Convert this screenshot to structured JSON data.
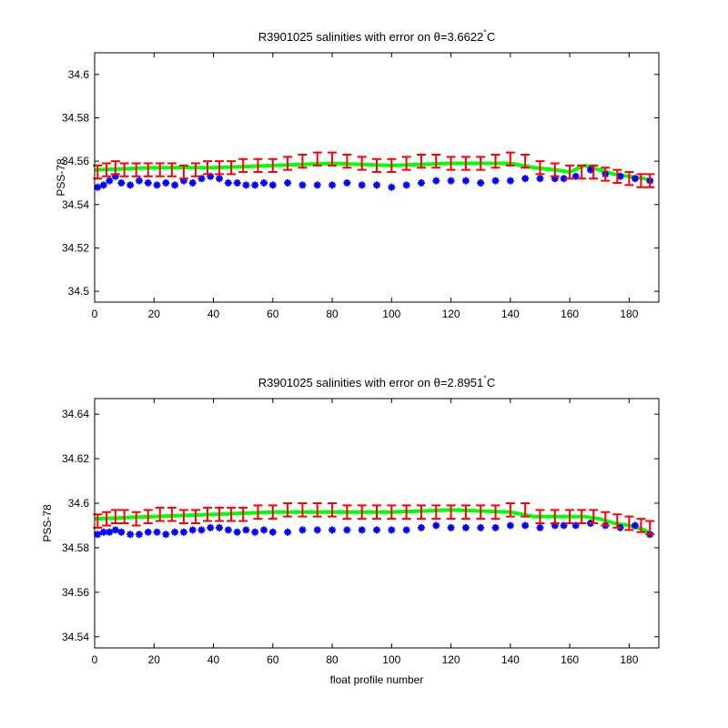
{
  "colors": {
    "raw": "#0000ff",
    "calibrated": "#ff0000",
    "mapped": "#00ff00",
    "axes": "#000000"
  },
  "chart_data": [
    {
      "type": "scatter",
      "title": "R3901025 salinities with error on θ=3.6622",
      "title_sup": "°",
      "title_unit": "C",
      "xlabel": "",
      "ylabel": "PSS-78",
      "xlim": [
        0,
        190
      ],
      "ylim": [
        34.495,
        34.61
      ],
      "xticks": [
        0,
        20,
        40,
        60,
        80,
        100,
        120,
        140,
        160,
        180
      ],
      "yticks": [
        34.5,
        34.52,
        34.54,
        34.56,
        34.58,
        34.6
      ],
      "ytick_labels": [
        "34.5",
        "34.52",
        "34.54",
        "34.56",
        "34.58",
        "34.6"
      ],
      "series": [
        {
          "role": "raw",
          "style": "blue-star",
          "x": [
            1,
            3,
            5,
            7,
            9,
            12,
            15,
            18,
            21,
            24,
            27,
            30,
            33,
            36,
            39,
            42,
            45,
            48,
            51,
            54,
            57,
            60,
            65,
            70,
            75,
            80,
            85,
            90,
            95,
            100,
            105,
            110,
            115,
            120,
            125,
            130,
            135,
            140,
            145,
            150,
            155,
            158,
            162,
            167,
            172,
            177,
            182,
            187
          ],
          "y": [
            34.548,
            34.549,
            34.551,
            34.553,
            34.55,
            34.549,
            34.551,
            34.55,
            34.549,
            34.55,
            34.549,
            34.551,
            34.55,
            34.552,
            34.553,
            34.552,
            34.55,
            34.55,
            34.549,
            34.549,
            34.55,
            34.549,
            34.55,
            34.549,
            34.549,
            34.549,
            34.55,
            34.549,
            34.549,
            34.548,
            34.549,
            34.55,
            34.551,
            34.551,
            34.551,
            34.55,
            34.551,
            34.551,
            34.552,
            34.552,
            34.552,
            34.552,
            34.553,
            34.556,
            34.554,
            34.553,
            34.552,
            34.551
          ]
        },
        {
          "role": "calibrated",
          "style": "red-errorbar",
          "x": [
            1,
            4,
            7,
            10,
            14,
            18,
            22,
            26,
            30,
            34,
            38,
            42,
            46,
            50,
            55,
            60,
            65,
            70,
            75,
            80,
            85,
            90,
            95,
            100,
            105,
            110,
            115,
            120,
            125,
            130,
            135,
            140,
            145,
            150,
            155,
            160,
            164,
            168,
            172,
            176,
            180,
            184,
            187
          ],
          "y": [
            34.555,
            34.556,
            34.557,
            34.556,
            34.556,
            34.556,
            34.556,
            34.556,
            34.555,
            34.556,
            34.557,
            34.557,
            34.557,
            34.558,
            34.558,
            34.558,
            34.559,
            34.56,
            34.561,
            34.561,
            34.56,
            34.559,
            34.558,
            34.558,
            34.559,
            34.56,
            34.56,
            34.559,
            34.559,
            34.559,
            34.56,
            34.561,
            34.56,
            34.557,
            34.556,
            34.555,
            34.555,
            34.555,
            34.554,
            34.553,
            34.552,
            34.551,
            34.551
          ],
          "err": 0.003
        },
        {
          "role": "mapped",
          "style": "green-line",
          "x": [
            0,
            20,
            40,
            60,
            80,
            100,
            120,
            140,
            148,
            155,
            160,
            165,
            170,
            175,
            180,
            185,
            188
          ],
          "y": [
            34.556,
            34.557,
            34.557,
            34.558,
            34.559,
            34.558,
            34.559,
            34.559,
            34.557,
            34.556,
            34.555,
            34.558,
            34.556,
            34.554,
            34.553,
            34.552,
            34.551
          ]
        }
      ]
    },
    {
      "type": "scatter",
      "title": "R3901025 salinities with error on θ=2.8951",
      "title_sup": "°",
      "title_unit": "C",
      "xlabel": "float profile number",
      "ylabel": "PSS-78",
      "xlim": [
        0,
        190
      ],
      "ylim": [
        34.535,
        34.647
      ],
      "xticks": [
        0,
        20,
        40,
        60,
        80,
        100,
        120,
        140,
        160,
        180
      ],
      "yticks": [
        34.54,
        34.56,
        34.58,
        34.6,
        34.62,
        34.64
      ],
      "ytick_labels": [
        "34.54",
        "34.56",
        "34.58",
        "34.6",
        "34.62",
        "34.64"
      ],
      "series": [
        {
          "role": "raw",
          "style": "blue-star",
          "x": [
            1,
            3,
            5,
            7,
            9,
            12,
            15,
            18,
            21,
            24,
            27,
            30,
            33,
            36,
            39,
            42,
            45,
            48,
            51,
            54,
            57,
            60,
            65,
            70,
            75,
            80,
            85,
            90,
            95,
            100,
            105,
            110,
            115,
            120,
            125,
            130,
            135,
            140,
            145,
            150,
            155,
            158,
            162,
            167,
            172,
            177,
            182,
            187
          ],
          "y": [
            34.586,
            34.587,
            34.587,
            34.588,
            34.587,
            34.586,
            34.586,
            34.587,
            34.587,
            34.586,
            34.587,
            34.587,
            34.588,
            34.588,
            34.589,
            34.589,
            34.588,
            34.587,
            34.588,
            34.587,
            34.588,
            34.587,
            34.587,
            34.588,
            34.588,
            34.588,
            34.588,
            34.588,
            34.588,
            34.588,
            34.588,
            34.589,
            34.59,
            34.589,
            34.589,
            34.589,
            34.589,
            34.59,
            34.59,
            34.589,
            34.59,
            34.59,
            34.59,
            34.591,
            34.59,
            34.589,
            34.59,
            34.586
          ],
          "err": 0
        },
        {
          "role": "calibrated",
          "style": "red-errorbar",
          "x": [
            1,
            4,
            7,
            10,
            14,
            18,
            22,
            26,
            30,
            34,
            38,
            42,
            46,
            50,
            55,
            60,
            65,
            70,
            75,
            80,
            85,
            90,
            95,
            100,
            105,
            110,
            115,
            120,
            125,
            130,
            135,
            140,
            145,
            150,
            155,
            160,
            164,
            168,
            172,
            176,
            180,
            184,
            187
          ],
          "y": [
            34.592,
            34.593,
            34.594,
            34.594,
            34.593,
            34.594,
            34.595,
            34.595,
            34.594,
            34.594,
            34.595,
            34.595,
            34.595,
            34.595,
            34.596,
            34.596,
            34.597,
            34.597,
            34.597,
            34.597,
            34.596,
            34.596,
            34.596,
            34.596,
            34.596,
            34.596,
            34.596,
            34.596,
            34.596,
            34.596,
            34.596,
            34.597,
            34.597,
            34.594,
            34.594,
            34.594,
            34.594,
            34.594,
            34.593,
            34.592,
            34.591,
            34.59,
            34.589
          ],
          "err": 0.003
        },
        {
          "role": "mapped",
          "style": "green-line",
          "x": [
            0,
            20,
            40,
            60,
            80,
            100,
            120,
            140,
            148,
            155,
            160,
            165,
            170,
            175,
            180,
            185,
            188
          ],
          "y": [
            34.593,
            34.594,
            34.595,
            34.596,
            34.596,
            34.596,
            34.597,
            34.596,
            34.594,
            34.594,
            34.594,
            34.594,
            34.593,
            34.591,
            34.59,
            34.588,
            34.586
          ]
        }
      ]
    }
  ]
}
